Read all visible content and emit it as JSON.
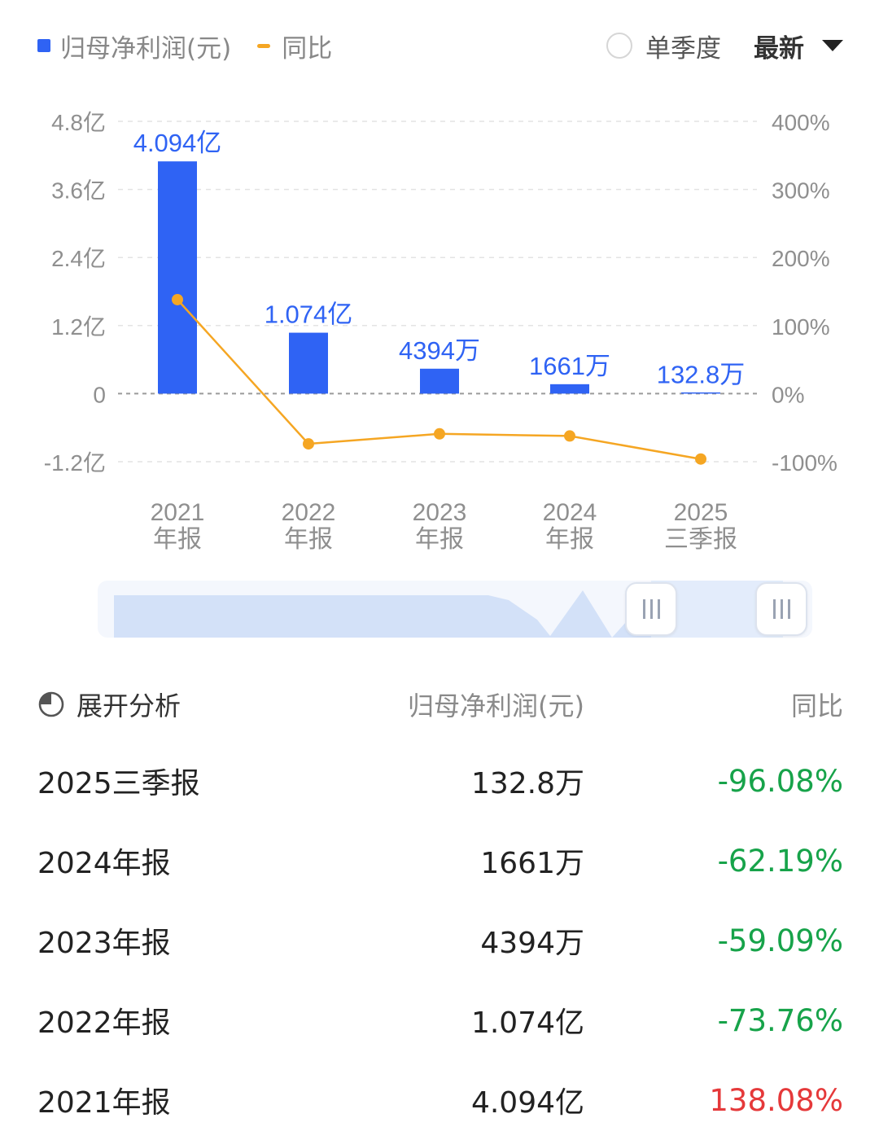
{
  "legend": {
    "items": [
      {
        "label": "归母净利润(元)",
        "color": "#2f63f4",
        "icon": "blue-square-icon"
      },
      {
        "label": "同比",
        "color": "#f5a623",
        "icon": "orange-dash-icon"
      }
    ]
  },
  "controls": {
    "single_quarter_label": "单季度",
    "sort_label": "最新"
  },
  "colors": {
    "bar": "#2f63f4",
    "bar_label": "#2f63f4",
    "line": "#f5a623",
    "positive": "#e5393a",
    "negative": "#17a34a"
  },
  "chart_data": {
    "type": "bar",
    "categories": [
      [
        "2021",
        "年报"
      ],
      [
        "2022",
        "年报"
      ],
      [
        "2023",
        "年报"
      ],
      [
        "2024",
        "年报"
      ],
      [
        "2025",
        "三季报"
      ]
    ],
    "series": [
      {
        "name": "归母净利润(元)",
        "type": "bar",
        "axis": "left",
        "unit": "亿",
        "values": [
          4.094,
          1.074,
          0.4394,
          0.1661,
          0.01328
        ],
        "labels": [
          "4.094亿",
          "1.074亿",
          "4394万",
          "1661万",
          "132.8万"
        ]
      },
      {
        "name": "同比",
        "type": "line",
        "axis": "right",
        "unit": "%",
        "values": [
          138.08,
          -73.76,
          -59.09,
          -62.19,
          -96.08
        ]
      }
    ],
    "y_left": {
      "min": -1.2,
      "max": 4.8,
      "ticks": [
        4.8,
        3.6,
        2.4,
        1.2,
        0,
        -1.2
      ],
      "tick_labels": [
        "4.8亿",
        "3.6亿",
        "2.4亿",
        "1.2亿",
        "0",
        "-1.2亿"
      ]
    },
    "y_right": {
      "min": -100,
      "max": 400,
      "ticks": [
        400,
        300,
        200,
        100,
        0,
        -100
      ],
      "tick_labels": [
        "400%",
        "300%",
        "200%",
        "100%",
        "0%",
        "-100%"
      ]
    },
    "grid": true
  },
  "table": {
    "header": {
      "analysis": "展开分析",
      "profit": "归母净利润(元)",
      "yoy": "同比"
    },
    "rows": [
      {
        "period": "2025三季报",
        "profit": "132.8万",
        "yoy": "-96.08%",
        "trend": "negative"
      },
      {
        "period": "2024年报",
        "profit": "1661万",
        "yoy": "-62.19%",
        "trend": "negative"
      },
      {
        "period": "2023年报",
        "profit": "4394万",
        "yoy": "-59.09%",
        "trend": "negative"
      },
      {
        "period": "2022年报",
        "profit": "1.074亿",
        "yoy": "-73.76%",
        "trend": "negative"
      },
      {
        "period": "2021年报",
        "profit": "4.094亿",
        "yoy": "138.08%",
        "trend": "positive"
      }
    ]
  }
}
